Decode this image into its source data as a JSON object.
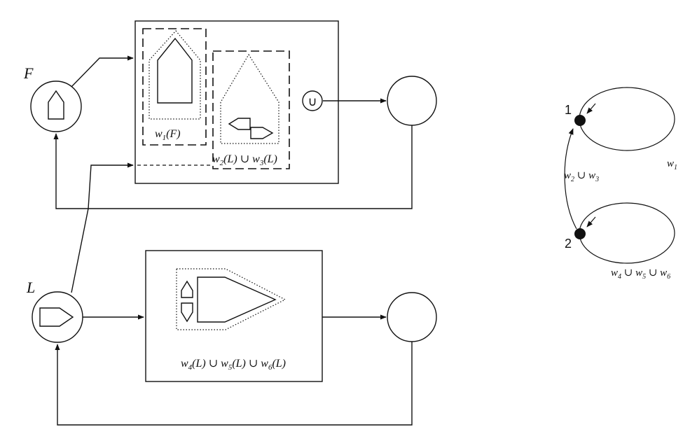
{
  "labels": {
    "F": "F",
    "L": "L",
    "union": "∪",
    "w1F": "w",
    "w1F_sub": "1",
    "w1F_rest": "(F)",
    "w23L_a": "w",
    "w23L_sub_a": "2",
    "w23L_mid": "(L) ∪ w",
    "w23L_sub_b": "3",
    "w23L_end": "(L)",
    "w456L_a": "w",
    "w456L_sub_a": "4",
    "w456L_mid1": "(L) ∪ w",
    "w456L_sub_b": "5",
    "w456L_mid2": "(L) ∪ w",
    "w456L_sub_c": "6",
    "w456L_end": "(L)"
  },
  "graph": {
    "node1": "1",
    "node2": "2",
    "loop1_w": "w",
    "loop1_sub": "1",
    "edge_w_a": "w",
    "edge_sub_a": "2",
    "edge_union": " ∪ w",
    "edge_sub_b": "3",
    "loop2_w": "w",
    "loop2_sub_a": "4",
    "loop2_u1": " ∪ w",
    "loop2_sub_b": "5",
    "loop2_u2": " ∪ w",
    "loop2_sub_c": "6"
  }
}
